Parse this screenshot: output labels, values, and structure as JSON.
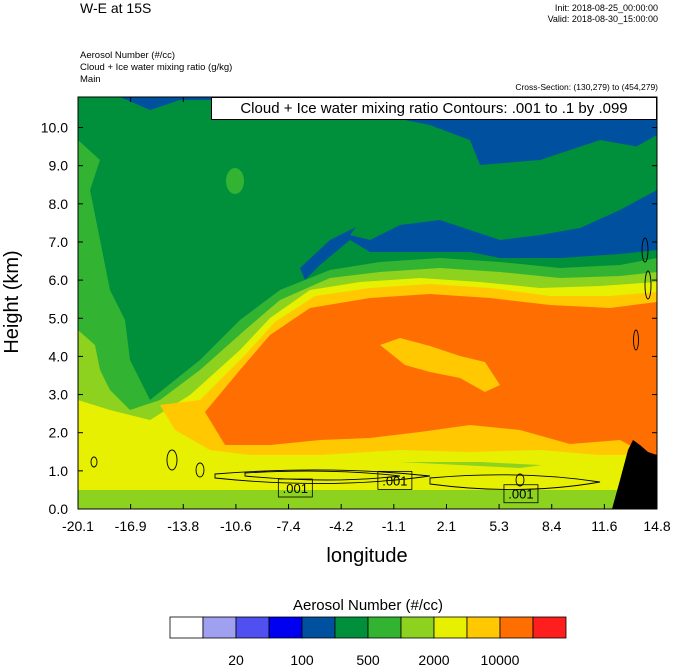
{
  "header": {
    "title": "W-E at 15S",
    "init": "Init: 2018-08-25_00:00:00",
    "valid": "Valid: 2018-08-30_15:00:00",
    "fields": [
      "Aerosol Number   (#/cc)",
      "Cloud + Ice water mixing ratio   (g/kg)",
      "Main"
    ],
    "cross_section": "Cross-Section: (130,279) to (454,279)"
  },
  "contour_label": "Cloud + Ice water mixing ratio Contours: .001 to .1 by .099",
  "colors": {
    "levels": [
      "#ffffff",
      "#a0a0f0",
      "#5050f0",
      "#0000f0",
      "#0050a0",
      "#00903c",
      "#32b432",
      "#8cd21e",
      "#e6f000",
      "#ffc800",
      "#ff6e00",
      "#ff1e1e"
    ],
    "terrain": "#000000"
  },
  "chart_data": {
    "type": "heatmap",
    "xlabel": "longitude",
    "ylabel": "Height (km)",
    "xlim": [
      -20.1,
      14.8
    ],
    "ylim": [
      0.0,
      10.8
    ],
    "x_ticks": [
      "-20.1",
      "-16.9",
      "-13.8",
      "-10.6",
      "-7.4",
      "-4.2",
      "-1.1",
      "2.1",
      "5.3",
      "8.4",
      "11.6",
      "14.8"
    ],
    "y_ticks": [
      "0.0",
      "1.0",
      "2.0",
      "3.0",
      "4.0",
      "5.0",
      "6.0",
      "7.0",
      "8.0",
      "9.0",
      "10.0"
    ],
    "colorbar": {
      "title": "Aerosol Number  (#/cc)",
      "tick_labels": [
        "20",
        "100",
        "500",
        "2000",
        "10000"
      ]
    },
    "contour_labels": [
      {
        "text": ".001",
        "lon": -7.0,
        "height": 0.55
      },
      {
        "text": ".001",
        "lon": -1.0,
        "height": 0.75
      },
      {
        "text": ".001",
        "lon": 6.6,
        "height": 0.4
      }
    ],
    "regions": {
      "orange_core": "lon -9 to 11.6, height 2.0-5.5 km",
      "blue_upper": "height above 8 km east of -6.5",
      "terrain": "lon 13.5-14.8, height up to 1.4 km"
    }
  }
}
